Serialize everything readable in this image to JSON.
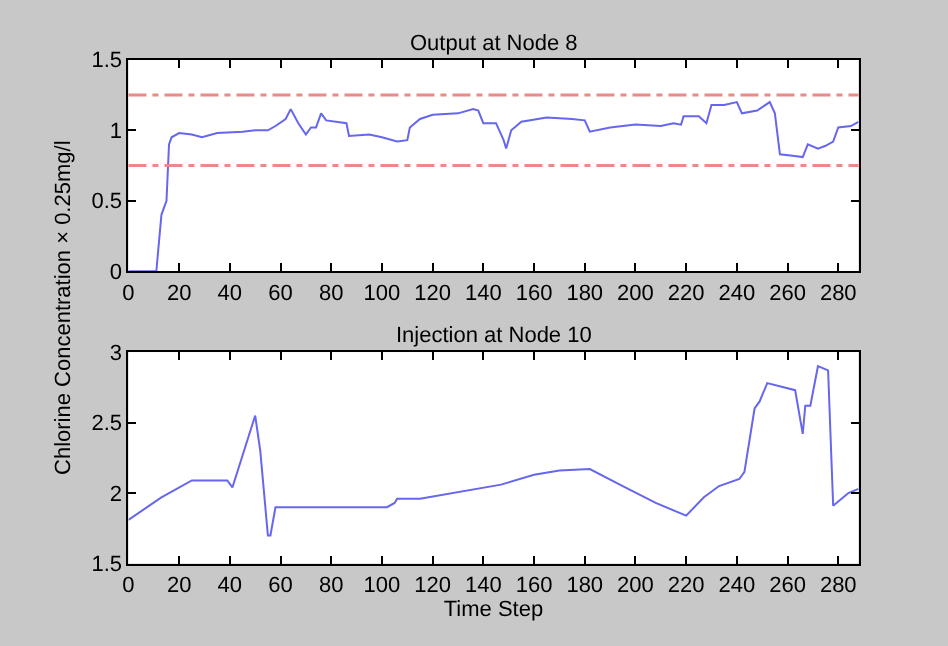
{
  "chart_data": [
    {
      "type": "line",
      "title": "Output at Node 8",
      "ylabel": "Chlorine Concentration × 0.25mg/l",
      "xlim": [
        0,
        288
      ],
      "xticks": [
        0,
        20,
        40,
        60,
        80,
        100,
        120,
        140,
        160,
        180,
        200,
        220,
        240,
        260,
        280
      ],
      "ylim": [
        0,
        1.5
      ],
      "yticks": [
        0,
        0.5,
        1,
        1.5
      ],
      "ref_lines": [
        {
          "axis": "y",
          "value": 1.25,
          "color": "#ee8888",
          "line_style": "dashdot"
        },
        {
          "axis": "y",
          "value": 0.75,
          "color": "#ee8888",
          "line_style": "dashdot"
        }
      ],
      "series": [
        {
          "color": "#6666ee",
          "x": [
            0,
            11,
            13,
            15,
            16,
            17,
            20,
            25,
            29,
            35,
            45,
            50,
            55,
            58,
            62,
            64,
            67,
            70,
            72,
            74,
            76,
            78,
            86,
            87,
            95,
            100,
            106,
            110,
            111,
            115,
            120,
            130,
            136,
            138,
            140,
            145,
            148,
            149,
            151,
            155,
            165,
            175,
            180,
            182,
            190,
            200,
            210,
            215,
            218,
            219,
            225,
            228,
            230,
            235,
            240,
            242,
            248,
            253,
            255,
            257,
            262,
            266,
            268,
            272,
            275,
            278,
            280,
            285,
            288
          ],
          "values": [
            0,
            0,
            0.4,
            0.5,
            0.9,
            0.95,
            0.98,
            0.97,
            0.95,
            0.98,
            0.99,
            1.0,
            1.0,
            1.03,
            1.08,
            1.15,
            1.05,
            0.97,
            1.02,
            1.02,
            1.12,
            1.07,
            1.05,
            0.96,
            0.97,
            0.95,
            0.92,
            0.93,
            1.02,
            1.08,
            1.11,
            1.12,
            1.15,
            1.14,
            1.05,
            1.05,
            0.93,
            0.87,
            1.0,
            1.06,
            1.09,
            1.08,
            1.07,
            0.99,
            1.02,
            1.04,
            1.03,
            1.05,
            1.04,
            1.1,
            1.1,
            1.05,
            1.18,
            1.18,
            1.2,
            1.12,
            1.14,
            1.2,
            1.12,
            0.83,
            0.82,
            0.81,
            0.9,
            0.87,
            0.89,
            0.92,
            1.02,
            1.03,
            1.06
          ]
        }
      ]
    },
    {
      "type": "line",
      "title": "Injection at Node 10",
      "xlabel": "Time Step",
      "xlim": [
        0,
        288
      ],
      "xticks": [
        0,
        20,
        40,
        60,
        80,
        100,
        120,
        140,
        160,
        180,
        200,
        220,
        240,
        260,
        280
      ],
      "ylim": [
        1.5,
        3
      ],
      "yticks": [
        1.5,
        2,
        2.5,
        3
      ],
      "series": [
        {
          "color": "#6666ee",
          "x": [
            0,
            13,
            25,
            39,
            41,
            50,
            52,
            55,
            56,
            58,
            102,
            105,
            106,
            115,
            147,
            160,
            170,
            182,
            195,
            208,
            220,
            227,
            233,
            241,
            243,
            247,
            249,
            252,
            263,
            266,
            267,
            269,
            272,
            276,
            278,
            284,
            288
          ],
          "values": [
            1.81,
            1.97,
            2.09,
            2.09,
            2.04,
            2.55,
            2.3,
            1.7,
            1.7,
            1.9,
            1.9,
            1.93,
            1.96,
            1.96,
            2.06,
            2.13,
            2.16,
            2.17,
            2.05,
            1.93,
            1.84,
            1.97,
            2.05,
            2.1,
            2.15,
            2.6,
            2.65,
            2.78,
            2.73,
            2.42,
            2.62,
            2.62,
            2.9,
            2.87,
            1.91,
            2.0,
            2.03
          ]
        }
      ]
    }
  ]
}
